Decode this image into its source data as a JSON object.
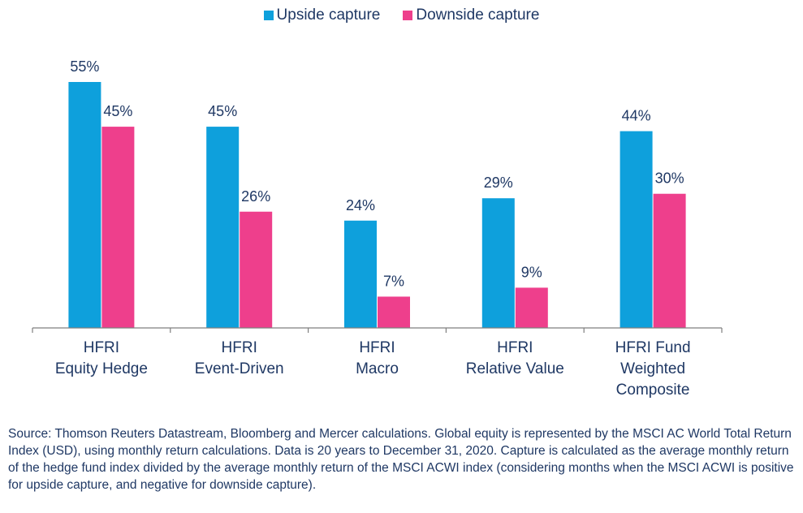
{
  "colors": {
    "upside": "#0ea0dc",
    "downside": "#ee3f8c",
    "axis": "#7f7f7f",
    "text": "#1f3864"
  },
  "chart_data": {
    "type": "bar",
    "categories": [
      [
        "HFRI",
        "Equity Hedge"
      ],
      [
        "HFRI",
        "Event-Driven"
      ],
      [
        "HFRI",
        "Macro"
      ],
      [
        "HFRI",
        "Relative Value"
      ],
      [
        "HFRI Fund",
        "Weighted",
        "Composite"
      ]
    ],
    "series": [
      {
        "name": "Upside capture",
        "values": [
          55,
          45,
          24,
          29,
          44
        ],
        "labels": [
          "55%",
          "45%",
          "24%",
          "29%",
          "44%"
        ]
      },
      {
        "name": "Downside capture",
        "values": [
          45,
          26,
          7,
          9,
          30
        ],
        "labels": [
          "45%",
          "26%",
          "7%",
          "9%",
          "30%"
        ]
      }
    ],
    "title": "",
    "xlabel": "",
    "ylabel": "",
    "ylim": [
      0,
      55
    ],
    "legend_position": "top-center",
    "grid": false
  },
  "legend": {
    "upside_label": "Upside capture",
    "downside_label": "Downside capture"
  },
  "source_text": "Source: Thomson Reuters Datastream, Bloomberg and Mercer calculations. Global equity is represented by the MSCI AC World Total Return Index (USD), using monthly return calculations. Data is 20 years to December 31, 2020. Capture is calculated as the average monthly return of the hedge fund index divided by the average monthly return of the MSCI ACWI index (considering months when the MSCI ACWI is positive for upside capture, and negative for downside capture)."
}
